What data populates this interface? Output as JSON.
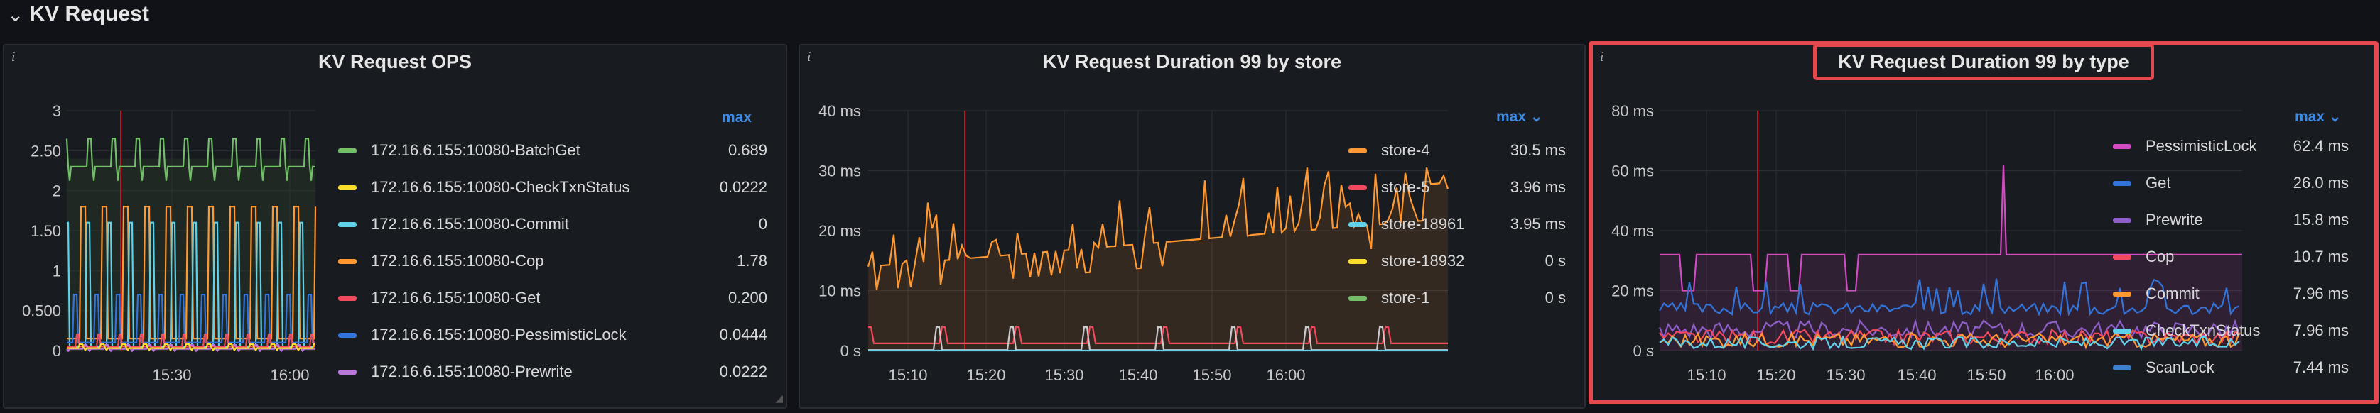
{
  "row": {
    "title": "KV Request",
    "chevron": "›"
  },
  "panels": [
    {
      "title": "KV Request OPS",
      "info": "i",
      "legend_header": "max",
      "y_ticks": [
        "3",
        "2.50",
        "2",
        "1.50",
        "1",
        "0.500",
        "0"
      ],
      "x_ticks": [
        "15:30",
        "16:00"
      ],
      "legend": [
        {
          "name": "172.16.6.155:10080-BatchGet",
          "value": "0.689",
          "color": "#73bf69"
        },
        {
          "name": "172.16.6.155:10080-CheckTxnStatus",
          "value": "0.0222",
          "color": "#fade2a"
        },
        {
          "name": "172.16.6.155:10080-Commit",
          "value": "0",
          "color": "#5fd1e8"
        },
        {
          "name": "172.16.6.155:10080-Cop",
          "value": "1.78",
          "color": "#ff9830"
        },
        {
          "name": "172.16.6.155:10080-Get",
          "value": "0.200",
          "color": "#f2495c"
        },
        {
          "name": "172.16.6.155:10080-PessimisticLock",
          "value": "0.0444",
          "color": "#3274d9"
        },
        {
          "name": "172.16.6.155:10080-Prewrite",
          "value": "0.0222",
          "color": "#b877d9"
        }
      ]
    },
    {
      "title": "KV Request Duration 99 by store",
      "info": "i",
      "legend_header": "max ⌄",
      "y_ticks": [
        "40 ms",
        "30 ms",
        "20 ms",
        "10 ms",
        "0 s"
      ],
      "x_ticks": [
        "15:10",
        "15:20",
        "15:30",
        "15:40",
        "15:50",
        "16:00"
      ],
      "legend": [
        {
          "name": "store-4",
          "value": "30.5 ms",
          "color": "#ff9830"
        },
        {
          "name": "store-5",
          "value": "3.96 ms",
          "color": "#f2495c"
        },
        {
          "name": "store-18961",
          "value": "3.95 ms",
          "color": "#5fd1e8"
        },
        {
          "name": "store-18932",
          "value": "0 s",
          "color": "#fade2a"
        },
        {
          "name": "store-1",
          "value": "0 s",
          "color": "#73bf69"
        }
      ]
    },
    {
      "title": "KV Request Duration 99 by type",
      "info": "i",
      "legend_header": "max ⌄",
      "y_ticks": [
        "80 ms",
        "60 ms",
        "40 ms",
        "20 ms",
        "0 s"
      ],
      "x_ticks": [
        "15:10",
        "15:20",
        "15:30",
        "15:40",
        "15:50",
        "16:00"
      ],
      "legend": [
        {
          "name": "PessimisticLock",
          "value": "62.4 ms",
          "color": "#d44ac4"
        },
        {
          "name": "Get",
          "value": "26.0 ms",
          "color": "#3274d9"
        },
        {
          "name": "Prewrite",
          "value": "15.8 ms",
          "color": "#8f5fc9"
        },
        {
          "name": "Cop",
          "value": "10.7 ms",
          "color": "#f2495c"
        },
        {
          "name": "Commit",
          "value": "7.96 ms",
          "color": "#ff9830"
        },
        {
          "name": "CheckTxnStatus",
          "value": "7.96 ms",
          "color": "#5fd1e8"
        },
        {
          "name": "ScanLock",
          "value": "7.44 ms",
          "color": "#3d7fc9"
        }
      ]
    }
  ]
}
